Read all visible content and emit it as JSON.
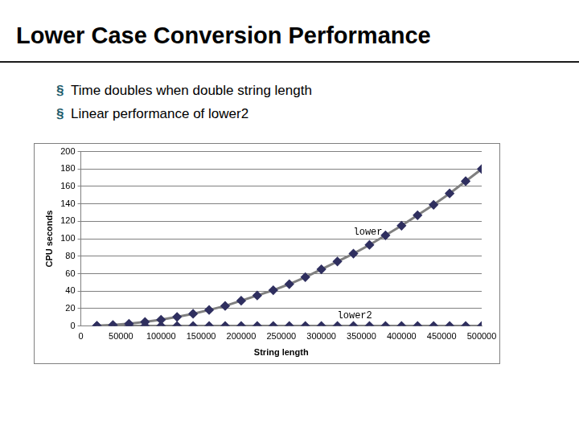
{
  "slide": {
    "title": "Lower Case Conversion Performance",
    "bullets": [
      "Time doubles when double string length",
      "Linear performance of lower2"
    ]
  },
  "chart_data": {
    "type": "line",
    "x_label": "String length",
    "y_label": "CPU seconds",
    "x": [
      20000,
      40000,
      60000,
      80000,
      100000,
      120000,
      140000,
      160000,
      180000,
      200000,
      220000,
      240000,
      260000,
      280000,
      300000,
      320000,
      340000,
      360000,
      380000,
      400000,
      420000,
      440000,
      460000,
      480000,
      500000
    ],
    "series": [
      {
        "name": "lower",
        "color": "#808080",
        "marker": "diamond",
        "values": [
          0.3,
          1.2,
          2.6,
          4.6,
          7.2,
          10.4,
          14,
          18.4,
          23,
          29,
          35,
          41,
          48,
          56,
          65,
          74,
          83,
          93,
          104,
          115,
          127,
          139,
          152,
          166,
          180
        ]
      },
      {
        "name": "lower2",
        "color": "#808080",
        "marker": "diamond",
        "values": [
          0,
          0,
          0,
          0,
          0,
          0,
          0,
          0,
          0,
          0,
          0,
          0,
          0,
          0,
          0,
          0,
          0,
          0,
          0,
          0,
          0,
          0,
          0,
          0,
          0
        ]
      }
    ],
    "annotations": [
      {
        "text": "lower",
        "x": 340000,
        "y": 108
      },
      {
        "text": "lower2",
        "x": 320000,
        "y": 12
      }
    ],
    "xlim": [
      0,
      500000
    ],
    "xticks": [
      0,
      50000,
      100000,
      150000,
      200000,
      250000,
      300000,
      350000,
      400000,
      450000,
      500000
    ],
    "ylim": [
      0,
      200
    ],
    "yticks": [
      0,
      20,
      40,
      60,
      80,
      100,
      120,
      140,
      160,
      180,
      200
    ],
    "grid": true
  }
}
